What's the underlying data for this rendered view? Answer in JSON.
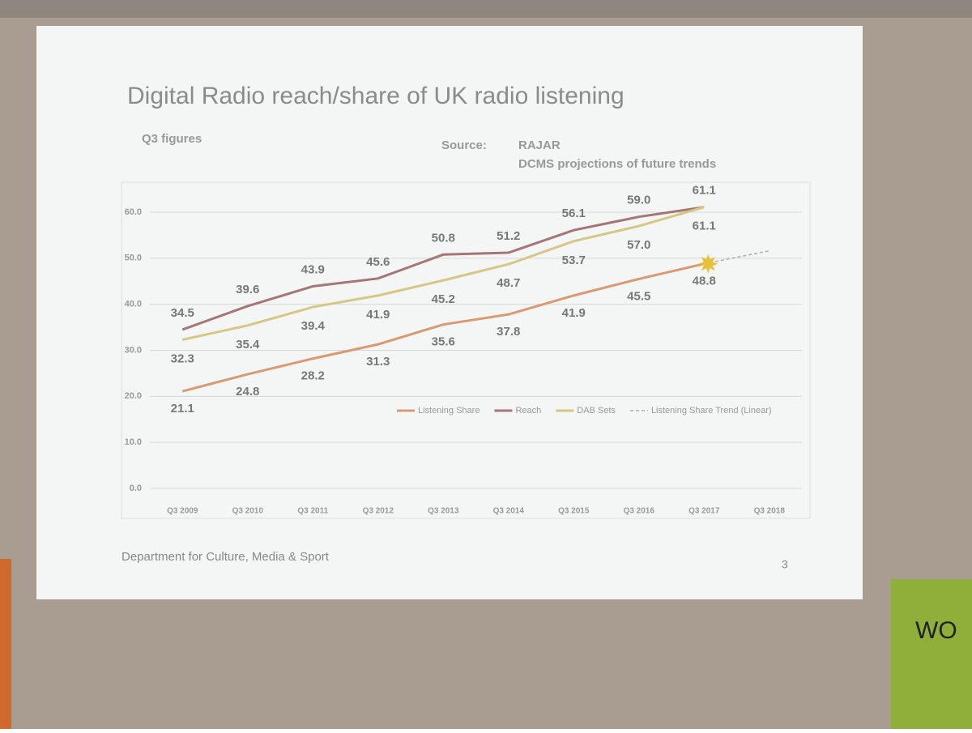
{
  "slide": {
    "title": "Digital Radio reach/share of UK radio listening",
    "subtitle": "Q3 figures",
    "source_label": "Source:",
    "source_lines": [
      "RAJAR",
      "DCMS projections of future trends"
    ],
    "footer": "Department for Culture, Media & Sport",
    "page_number": "3"
  },
  "banner_text": "WO",
  "chart_data": {
    "type": "line",
    "categories": [
      "Q3 2009",
      "Q3 2010",
      "Q3 2011",
      "Q3 2012",
      "Q3 2013",
      "Q3 2014",
      "Q3 2015",
      "Q3 2016",
      "Q3 2017",
      "Q3 2018"
    ],
    "series": [
      {
        "name": "Listening Share",
        "color": "#d99a72",
        "values": [
          21.1,
          24.8,
          28.2,
          31.3,
          35.6,
          37.8,
          41.9,
          45.5,
          48.8,
          null
        ],
        "value_labels": [
          "21.1",
          "24.8",
          "28.2",
          "31.3",
          "35.6",
          "37.8",
          "41.9",
          "45.5",
          "48.8",
          null
        ]
      },
      {
        "name": "Reach",
        "color": "#a57577",
        "values": [
          34.5,
          39.6,
          43.9,
          45.6,
          50.8,
          51.2,
          56.1,
          59,
          61.1,
          null
        ],
        "value_labels": [
          "34.5",
          "39.6",
          "43.9",
          "45.6",
          "50.8",
          "51.2",
          "56.1",
          "59.0",
          "61.1",
          null
        ]
      },
      {
        "name": "DAB Sets",
        "color": "#d6c784",
        "values": [
          32.3,
          35.4,
          39.4,
          41.9,
          45.2,
          48.7,
          53.7,
          57,
          61.1,
          null
        ],
        "value_labels": [
          "32.3",
          "35.4",
          "39.4",
          "41.9",
          "45.2",
          "48.7",
          "53.7",
          "57.0",
          "61.1",
          null
        ]
      },
      {
        "name": "Listening Share Trend (Linear)",
        "color": "#b0aaa8",
        "dashed": true,
        "values": [
          null,
          null,
          null,
          null,
          null,
          null,
          null,
          null,
          48.8,
          51.6
        ]
      }
    ],
    "ylim": [
      0,
      60
    ],
    "yticks": [
      {
        "value": 0,
        "label": "0.0"
      },
      {
        "value": 10,
        "label": "10.0"
      },
      {
        "value": 20,
        "label": "20.0"
      },
      {
        "value": 30,
        "label": "30.0"
      },
      {
        "value": 40,
        "label": "40.0"
      },
      {
        "value": 50,
        "label": "50.0"
      },
      {
        "value": 60,
        "label": "60.0"
      }
    ],
    "grid": true,
    "legend": "lower right"
  }
}
